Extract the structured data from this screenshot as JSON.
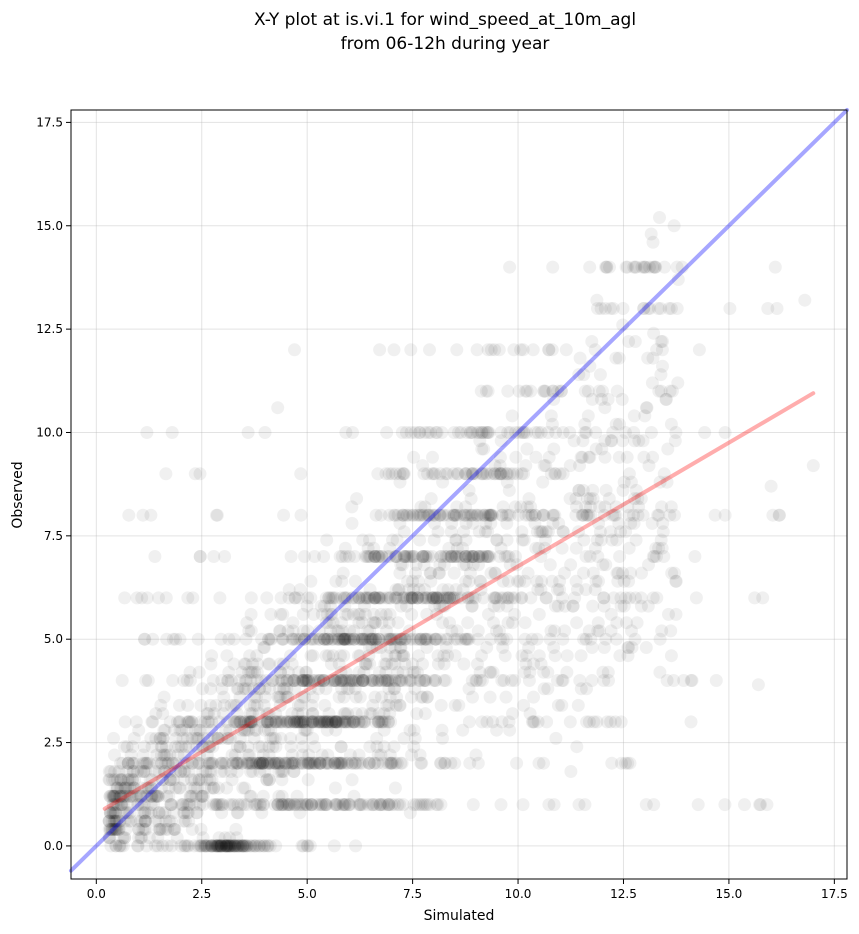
{
  "chart_data": {
    "type": "scatter",
    "title": "X-Y plot at is.vi.1 for wind_speed_at_10m_agl",
    "subtitle": "from 06-12h during year",
    "xlabel": "Simulated",
    "ylabel": "Observed",
    "xlim": [
      -0.6,
      17.8
    ],
    "ylim": [
      -0.8,
      17.8
    ],
    "x_ticks": [
      0.0,
      2.5,
      5.0,
      7.5,
      10.0,
      12.5,
      15.0,
      17.5
    ],
    "y_ticks": [
      0.0,
      2.5,
      5.0,
      7.5,
      10.0,
      12.5,
      15.0,
      17.5
    ],
    "x_tick_labels": [
      "0.0",
      "2.5",
      "5.0",
      "7.5",
      "10.0",
      "12.5",
      "15.0",
      "17.5"
    ],
    "y_tick_labels": [
      "0.0",
      "2.5",
      "5.0",
      "7.5",
      "10.0",
      "12.5",
      "15.0",
      "17.5"
    ],
    "grid": true,
    "point_color": "#000000",
    "one_to_one_line": {
      "color": "#0000ff",
      "x": [
        -0.6,
        17.8
      ],
      "y": [
        -0.6,
        17.8
      ]
    },
    "regression_line": {
      "color": "#ff0000",
      "x": [
        0.2,
        17.0
      ],
      "y": [
        0.9,
        10.95
      ]
    },
    "observed_levels": [
      0,
      1,
      2,
      3,
      4,
      5,
      6,
      7,
      8,
      9,
      10,
      11,
      12,
      13,
      14
    ],
    "density_bands": [
      {
        "level": 0,
        "x_range": [
          0.3,
          6.2
        ],
        "peak_x": 2.8
      },
      {
        "level": 1,
        "x_range": [
          0.3,
          15.9
        ],
        "peak_x": 2.8
      },
      {
        "level": 2,
        "x_range": [
          0.3,
          13.0
        ],
        "peak_x": 3.0
      },
      {
        "level": 3,
        "x_range": [
          0.3,
          12.5
        ],
        "peak_x": 4.0
      },
      {
        "level": 4,
        "x_range": [
          0.3,
          14.6
        ],
        "peak_x": 4.7
      },
      {
        "level": 5,
        "x_range": [
          0.8,
          13.5
        ],
        "peak_x": 5.6
      },
      {
        "level": 6,
        "x_range": [
          0.5,
          15.8
        ],
        "peak_x": 6.5
      },
      {
        "level": 7,
        "x_range": [
          0.6,
          14.6
        ],
        "peak_x": 7.5
      },
      {
        "level": 8,
        "x_range": [
          0.7,
          16.9
        ],
        "peak_x": 8.5
      },
      {
        "level": 9,
        "x_range": [
          1.6,
          14.5
        ],
        "peak_x": 9.2
      },
      {
        "level": 10,
        "x_range": [
          1.3,
          15.2
        ],
        "peak_x": 10.2
      },
      {
        "level": 11,
        "x_range": [
          7.8,
          13.8
        ],
        "peak_x": 10.5
      },
      {
        "level": 12,
        "x_range": [
          4.8,
          14.4
        ],
        "peak_x": 11.0
      },
      {
        "level": 13,
        "x_range": [
          10.7,
          16.8
        ],
        "peak_x": 12.0
      },
      {
        "level": 14,
        "x_range": [
          9.8,
          16.0
        ],
        "peak_x": 13.0
      }
    ],
    "outliers": [
      [
        13.7,
        15.0
      ],
      [
        13.2,
        14.6
      ],
      [
        13.0,
        14.0
      ],
      [
        13.2,
        14.0
      ],
      [
        16.1,
        14.0
      ],
      [
        11.7,
        14.0
      ],
      [
        9.8,
        14.0
      ],
      [
        16.8,
        13.2
      ],
      [
        13.8,
        13.7
      ],
      [
        4.7,
        12.0
      ],
      [
        7.9,
        12.0
      ],
      [
        14.3,
        12.0
      ],
      [
        1.2,
        10.0
      ],
      [
        1.8,
        10.0
      ],
      [
        3.6,
        10.0
      ],
      [
        4.0,
        10.0
      ],
      [
        4.3,
        10.6
      ],
      [
        17.0,
        9.2
      ],
      [
        15.8,
        6.0
      ],
      [
        15.9,
        1.0
      ],
      [
        15.7,
        3.9
      ],
      [
        14.1,
        3.0
      ],
      [
        14.7,
        4.0
      ],
      [
        16.0,
        8.7
      ]
    ]
  }
}
